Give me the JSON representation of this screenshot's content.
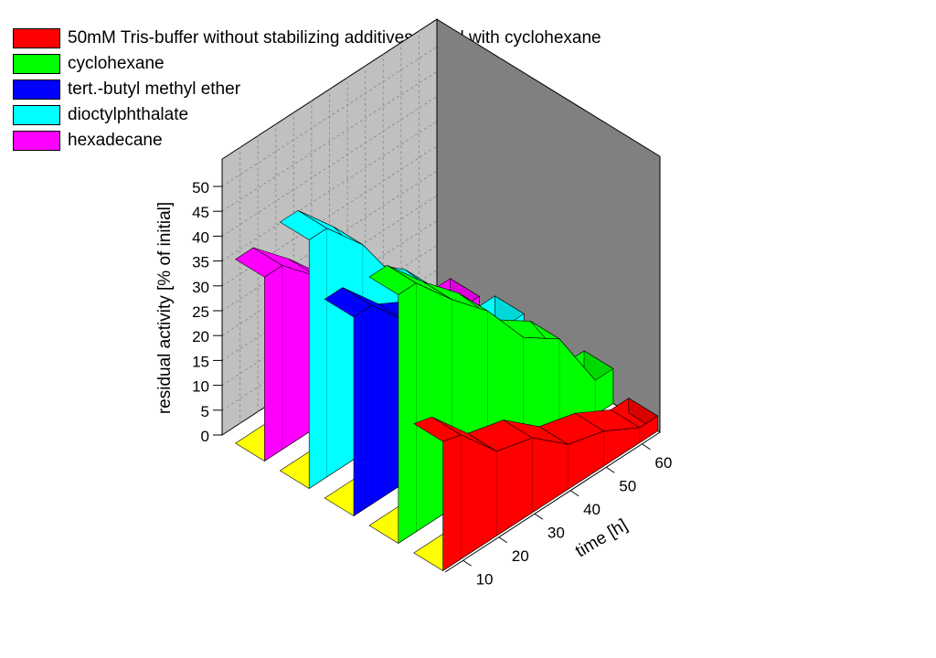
{
  "chart_data": {
    "type": "area",
    "ylabel": "residual activity [% of initial]",
    "xlabel": "time [h]",
    "ylim": [
      0,
      50
    ],
    "xlim": [
      5,
      65
    ],
    "y_ticks": [
      "0",
      "5",
      "10",
      "15",
      "20",
      "25",
      "30",
      "35",
      "40",
      "45",
      "50"
    ],
    "x_ticks": [
      "10",
      "20",
      "30",
      "40",
      "50",
      "60"
    ],
    "grid": true,
    "legend_position": "top-left",
    "x": [
      5,
      10,
      20,
      30,
      40,
      50,
      60,
      65
    ],
    "series": [
      {
        "name": "50mM Tris-buffer without stabilizing additives mixed with cyclohexane",
        "color": "#ff0000",
        "values": [
          26,
          25,
          17,
          15,
          9,
          7,
          3,
          3
        ]
      },
      {
        "name": "cyclohexane",
        "color": "#00ff00",
        "values": [
          50,
          50,
          42,
          35,
          25,
          20,
          7,
          7
        ]
      },
      {
        "name": "tert.-butyl methyl ether",
        "color": "#0000ff",
        "values": [
          40,
          40,
          32,
          28,
          20,
          14,
          3,
          3
        ]
      },
      {
        "name": "dioctylphthalate",
        "color": "#00ffff",
        "values": [
          50,
          50,
          42,
          30,
          24,
          14,
          7,
          7
        ]
      },
      {
        "name": "hexadecane",
        "color": "#ff00ff",
        "values": [
          37,
          37,
          30,
          22,
          20,
          10,
          5,
          5
        ]
      }
    ]
  }
}
